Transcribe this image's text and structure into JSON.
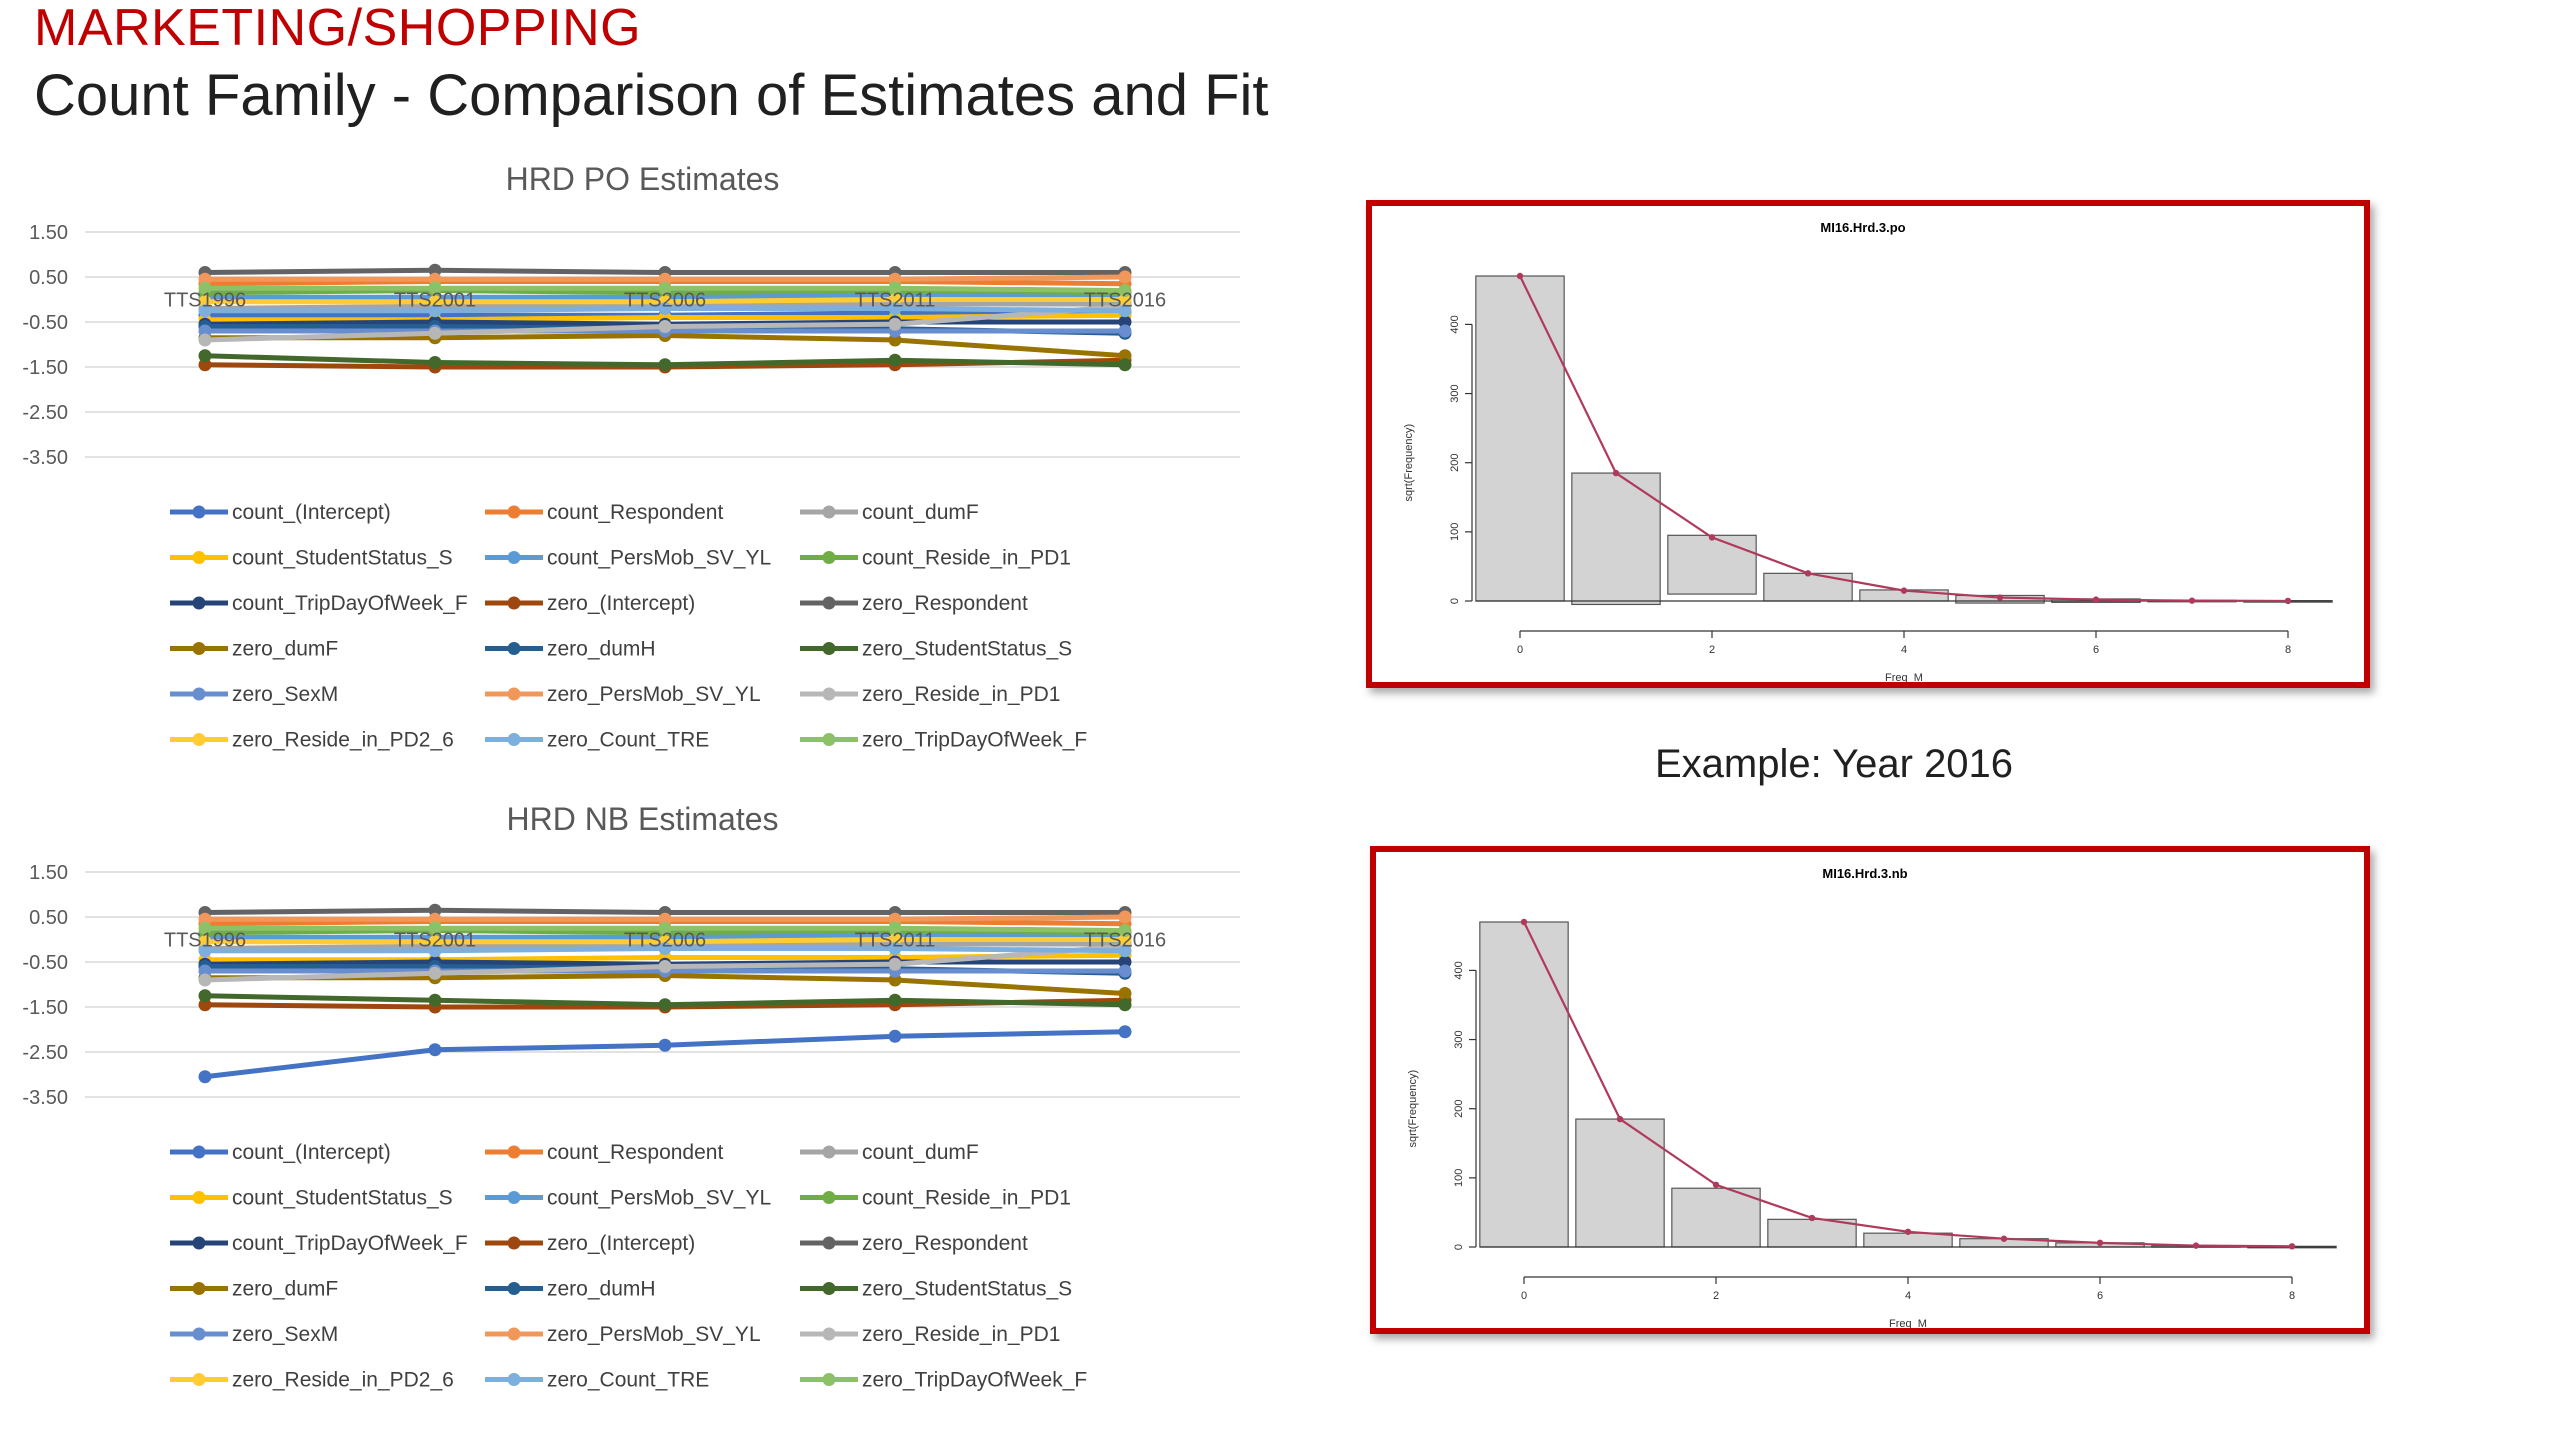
{
  "header": {
    "section": "MARKETING/SHOPPING",
    "title": "Count Family - Comparison of Estimates and Fit"
  },
  "example_label": "Example: Year 2016",
  "colors": {
    "accent": "#c00000"
  },
  "chart_data": [
    {
      "type": "line",
      "title": "HRD PO Estimates",
      "categories": [
        "TTS1996",
        "TTS2001",
        "TTS2006",
        "TTS2011",
        "TTS2016"
      ],
      "yticks": [
        "1.50",
        "0.50",
        "-0.50",
        "-1.50",
        "-2.50",
        "-3.50"
      ],
      "ylim": [
        -3.5,
        1.5
      ],
      "grid": true,
      "legend_position": "bottom",
      "series": [
        {
          "name": "count_(Intercept)",
          "color": "#4472c4",
          "values": [
            -0.35,
            -0.35,
            -0.35,
            -0.3,
            -0.3
          ]
        },
        {
          "name": "count_Respondent",
          "color": "#ed7d31",
          "values": [
            0.35,
            0.4,
            0.4,
            0.4,
            0.35
          ]
        },
        {
          "name": "count_dumF",
          "color": "#a5a5a5",
          "values": [
            -0.2,
            -0.15,
            -0.15,
            -0.1,
            -0.1
          ]
        },
        {
          "name": "count_StudentStatus_S",
          "color": "#ffc000",
          "values": [
            -0.45,
            -0.45,
            -0.4,
            -0.4,
            -0.35
          ]
        },
        {
          "name": "count_PersMob_SV_YL",
          "color": "#5b9bd5",
          "values": [
            0.05,
            0.05,
            0.05,
            0.1,
            0.05
          ]
        },
        {
          "name": "count_Reside_in_PD1",
          "color": "#70ad47",
          "values": [
            0.15,
            0.2,
            0.15,
            0.2,
            0.15
          ]
        },
        {
          "name": "count_TripDayOfWeek_F",
          "color": "#264478",
          "values": [
            -0.55,
            -0.5,
            -0.55,
            -0.5,
            -0.5
          ]
        },
        {
          "name": "zero_(Intercept)",
          "color": "#9e480e",
          "values": [
            -1.45,
            -1.5,
            -1.5,
            -1.45,
            -1.35
          ]
        },
        {
          "name": "zero_Respondent",
          "color": "#636363",
          "values": [
            0.6,
            0.65,
            0.6,
            0.6,
            0.6
          ]
        },
        {
          "name": "zero_dumF",
          "color": "#997300",
          "values": [
            -0.85,
            -0.85,
            -0.8,
            -0.9,
            -1.25
          ]
        },
        {
          "name": "zero_dumH",
          "color": "#255e91",
          "values": [
            -0.6,
            -0.6,
            -0.65,
            -0.65,
            -0.75
          ]
        },
        {
          "name": "zero_StudentStatus_S",
          "color": "#43682b",
          "values": [
            -1.25,
            -1.4,
            -1.45,
            -1.35,
            -1.45
          ]
        },
        {
          "name": "zero_SexM",
          "color": "#698ed0",
          "values": [
            -0.7,
            -0.7,
            -0.7,
            -0.7,
            -0.7
          ]
        },
        {
          "name": "zero_PersMob_SV_YL",
          "color": "#f1975a",
          "values": [
            0.45,
            0.45,
            0.45,
            0.45,
            0.5
          ]
        },
        {
          "name": "zero_Reside_in_PD1",
          "color": "#b7b7b7",
          "values": [
            -0.9,
            -0.75,
            -0.6,
            -0.55,
            -0.15
          ]
        },
        {
          "name": "zero_Reside_in_PD2_6",
          "color": "#ffcd33",
          "values": [
            -0.05,
            -0.05,
            -0.05,
            0.0,
            0.0
          ]
        },
        {
          "name": "zero_Count_TRE",
          "color": "#7cafdd",
          "values": [
            -0.25,
            -0.25,
            -0.2,
            -0.2,
            -0.25
          ]
        },
        {
          "name": "zero_TripDayOfWeek_F",
          "color": "#8cc168",
          "values": [
            0.25,
            0.25,
            0.25,
            0.25,
            0.2
          ]
        }
      ]
    },
    {
      "type": "line",
      "title": "HRD NB Estimates",
      "categories": [
        "TTS1996",
        "TTS2001",
        "TTS2006",
        "TTS2011",
        "TTS2016"
      ],
      "yticks": [
        "1.50",
        "0.50",
        "-0.50",
        "-1.50",
        "-2.50",
        "-3.50"
      ],
      "ylim": [
        -3.5,
        1.5
      ],
      "grid": true,
      "legend_position": "bottom",
      "series": [
        {
          "name": "count_(Intercept)",
          "color": "#4472c4",
          "values": [
            -3.05,
            -2.45,
            -2.35,
            -2.15,
            -2.05
          ]
        },
        {
          "name": "count_Respondent",
          "color": "#ed7d31",
          "values": [
            0.35,
            0.4,
            0.4,
            0.4,
            0.35
          ]
        },
        {
          "name": "count_dumF",
          "color": "#a5a5a5",
          "values": [
            -0.2,
            -0.15,
            -0.15,
            -0.1,
            -0.1
          ]
        },
        {
          "name": "count_StudentStatus_S",
          "color": "#ffc000",
          "values": [
            -0.45,
            -0.45,
            -0.4,
            -0.4,
            -0.35
          ]
        },
        {
          "name": "count_PersMob_SV_YL",
          "color": "#5b9bd5",
          "values": [
            0.05,
            0.05,
            0.05,
            0.1,
            0.05
          ]
        },
        {
          "name": "count_Reside_in_PD1",
          "color": "#70ad47",
          "values": [
            0.15,
            0.2,
            0.15,
            0.2,
            0.15
          ]
        },
        {
          "name": "count_TripDayOfWeek_F",
          "color": "#264478",
          "values": [
            -0.55,
            -0.5,
            -0.55,
            -0.5,
            -0.5
          ]
        },
        {
          "name": "zero_(Intercept)",
          "color": "#9e480e",
          "values": [
            -1.45,
            -1.5,
            -1.5,
            -1.45,
            -1.35
          ]
        },
        {
          "name": "zero_Respondent",
          "color": "#636363",
          "values": [
            0.6,
            0.65,
            0.6,
            0.6,
            0.6
          ]
        },
        {
          "name": "zero_dumF",
          "color": "#997300",
          "values": [
            -0.85,
            -0.85,
            -0.8,
            -0.9,
            -1.2
          ]
        },
        {
          "name": "zero_dumH",
          "color": "#255e91",
          "values": [
            -0.6,
            -0.6,
            -0.65,
            -0.65,
            -0.75
          ]
        },
        {
          "name": "zero_StudentStatus_S",
          "color": "#43682b",
          "values": [
            -1.25,
            -1.35,
            -1.45,
            -1.35,
            -1.45
          ]
        },
        {
          "name": "zero_SexM",
          "color": "#698ed0",
          "values": [
            -0.7,
            -0.7,
            -0.7,
            -0.7,
            -0.7
          ]
        },
        {
          "name": "zero_PersMob_SV_YL",
          "color": "#f1975a",
          "values": [
            0.45,
            0.45,
            0.45,
            0.45,
            0.5
          ]
        },
        {
          "name": "zero_Reside_in_PD1",
          "color": "#b7b7b7",
          "values": [
            -0.9,
            -0.75,
            -0.6,
            -0.55,
            -0.15
          ]
        },
        {
          "name": "zero_Reside_in_PD2_6",
          "color": "#ffcd33",
          "values": [
            -0.05,
            -0.05,
            -0.05,
            0.0,
            0.0
          ]
        },
        {
          "name": "zero_Count_TRE",
          "color": "#7cafdd",
          "values": [
            -0.25,
            -0.25,
            -0.2,
            -0.2,
            -0.25
          ]
        },
        {
          "name": "zero_TripDayOfWeek_F",
          "color": "#8cc168",
          "values": [
            0.25,
            0.25,
            0.25,
            0.25,
            0.2
          ]
        }
      ]
    },
    {
      "type": "bar",
      "title": "MI16.Hrd.3.po",
      "xlabel": "Freq_M",
      "ylabel": "sqrt(Frequency)",
      "xticks": [
        "0",
        "2",
        "4",
        "6",
        "8"
      ],
      "yticks": [
        "0",
        "100",
        "200",
        "300",
        "400"
      ],
      "ylim": [
        0,
        480
      ],
      "bars": [
        {
          "x": 0,
          "top": 470,
          "bottom": 0
        },
        {
          "x": 1,
          "top": 185,
          "bottom": -5
        },
        {
          "x": 2,
          "top": 95,
          "bottom": 10
        },
        {
          "x": 3,
          "top": 40,
          "bottom": 0
        },
        {
          "x": 4,
          "top": 16,
          "bottom": 0
        },
        {
          "x": 5,
          "top": 8,
          "bottom": -3
        },
        {
          "x": 6,
          "top": 3,
          "bottom": -2
        },
        {
          "x": 7,
          "top": 1,
          "bottom": 0
        },
        {
          "x": 8,
          "top": 0.5,
          "bottom": 0
        }
      ],
      "fitted": [
        470,
        185,
        92,
        40,
        15,
        5,
        2,
        0.5,
        0.1
      ]
    },
    {
      "type": "bar",
      "title": "MI16.Hrd.3.nb",
      "xlabel": "Freq_M",
      "ylabel": "sqrt(Frequency)",
      "xticks": [
        "0",
        "2",
        "4",
        "6",
        "8"
      ],
      "yticks": [
        "0",
        "100",
        "200",
        "300",
        "400"
      ],
      "ylim": [
        0,
        480
      ],
      "bars": [
        {
          "x": 0,
          "top": 470,
          "bottom": 0
        },
        {
          "x": 1,
          "top": 185,
          "bottom": 0
        },
        {
          "x": 2,
          "top": 85,
          "bottom": 0
        },
        {
          "x": 3,
          "top": 40,
          "bottom": 0
        },
        {
          "x": 4,
          "top": 20,
          "bottom": 0
        },
        {
          "x": 5,
          "top": 12,
          "bottom": 0
        },
        {
          "x": 6,
          "top": 6,
          "bottom": 0
        },
        {
          "x": 7,
          "top": 2,
          "bottom": 0
        },
        {
          "x": 8,
          "top": 1,
          "bottom": 0
        }
      ],
      "fitted": [
        470,
        185,
        90,
        42,
        22,
        12,
        6,
        2,
        1
      ]
    }
  ]
}
